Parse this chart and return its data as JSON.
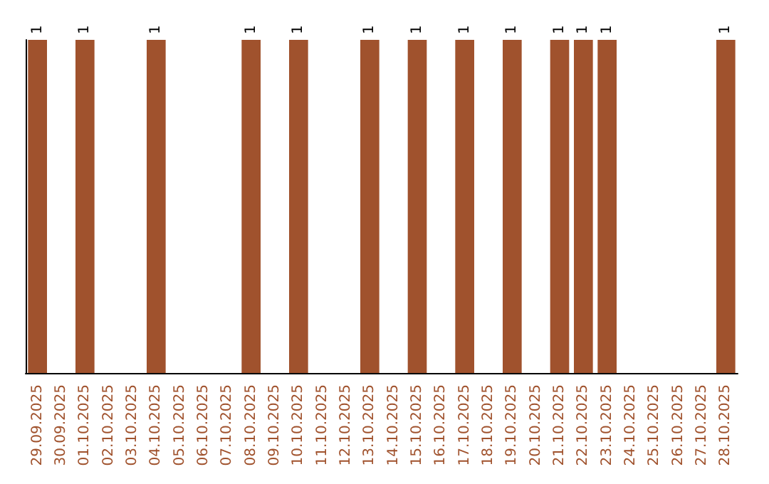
{
  "chart_data": {
    "type": "bar",
    "color": "#a0522d",
    "categories": [
      "29.09.2025",
      "30.09.2025",
      "01.10.2025",
      "02.10.2025",
      "03.10.2025",
      "04.10.2025",
      "05.10.2025",
      "06.10.2025",
      "07.10.2025",
      "08.10.2025",
      "09.10.2025",
      "10.10.2025",
      "11.10.2025",
      "12.10.2025",
      "13.10.2025",
      "14.10.2025",
      "15.10.2025",
      "16.10.2025",
      "17.10.2025",
      "18.10.2025",
      "19.10.2025",
      "20.10.2025",
      "21.10.2025",
      "22.10.2025",
      "23.10.2025",
      "24.10.2025",
      "25.10.2025",
      "26.10.2025",
      "27.10.2025",
      "28.10.2025"
    ],
    "values": [
      1,
      0,
      1,
      0,
      0,
      1,
      0,
      0,
      0,
      1,
      0,
      1,
      0,
      0,
      1,
      0,
      1,
      0,
      1,
      0,
      1,
      0,
      1,
      1,
      1,
      0,
      0,
      0,
      0,
      1
    ],
    "value_labels": [
      "1",
      null,
      "1",
      null,
      null,
      "1",
      null,
      null,
      null,
      "1",
      null,
      "1",
      null,
      null,
      "1",
      null,
      "1",
      null,
      "1",
      null,
      "1",
      null,
      "1",
      "1",
      "1",
      null,
      null,
      null,
      null,
      "1"
    ],
    "grid": false
  }
}
